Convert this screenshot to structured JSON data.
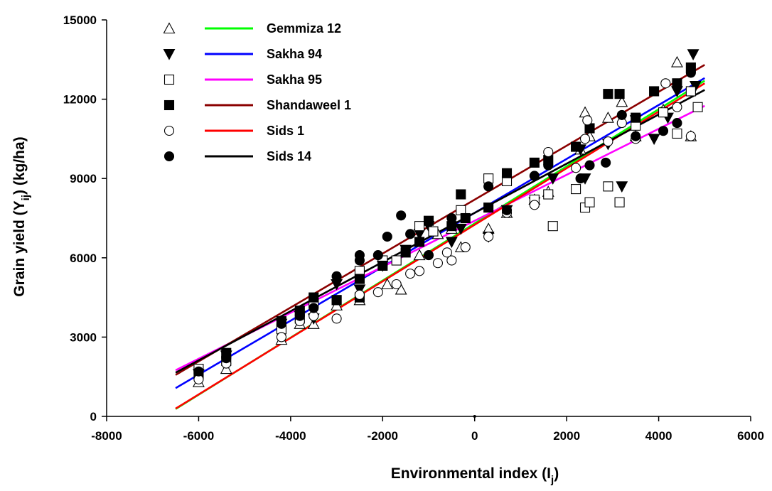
{
  "chart_data": {
    "type": "scatter",
    "xlabel": {
      "main": "Environmental index (I",
      "sub": "j",
      "close": ")"
    },
    "ylabel": {
      "main": "Grain yield (Y",
      "sub": "ij",
      "close": ") (kg/ha)"
    },
    "xlim": [
      -8000,
      6000
    ],
    "ylim": [
      0,
      15000
    ],
    "xticks": [
      -8000,
      -6000,
      -4000,
      -2000,
      0,
      2000,
      4000,
      6000
    ],
    "yticks": [
      0,
      3000,
      6000,
      9000,
      12000,
      15000
    ],
    "xtick_labels": [
      "-8000",
      "-6000",
      "-4000",
      "-2000",
      "0",
      "2000",
      "4000",
      "6000"
    ],
    "ytick_labels": [
      "0",
      "3000",
      "6000",
      "9000",
      "12000",
      "15000"
    ],
    "grid": false,
    "legend_position": "top-left",
    "series": [
      {
        "name": "Gemmiza 12",
        "marker": "triangle-up-open",
        "line_color": "#00ff00",
        "fit": {
          "slope": 1.08,
          "intercept": 7300,
          "x_range": [
            -6500,
            5000
          ]
        },
        "points": [
          [
            -6000,
            1300
          ],
          [
            -5400,
            1800
          ],
          [
            -4200,
            2900
          ],
          [
            -3800,
            3500
          ],
          [
            -3500,
            3500
          ],
          [
            -3000,
            4200
          ],
          [
            -2500,
            4400
          ],
          [
            -1900,
            5000
          ],
          [
            -1600,
            4800
          ],
          [
            -1200,
            6100
          ],
          [
            -800,
            6900
          ],
          [
            -500,
            7100
          ],
          [
            -300,
            6400
          ],
          [
            300,
            7100
          ],
          [
            700,
            7700
          ],
          [
            1300,
            8200
          ],
          [
            1600,
            8500
          ],
          [
            2300,
            10100
          ],
          [
            2400,
            11500
          ],
          [
            2500,
            10600
          ],
          [
            2900,
            11300
          ],
          [
            3200,
            11900
          ],
          [
            3500,
            10600
          ],
          [
            4100,
            11600
          ],
          [
            4400,
            13400
          ],
          [
            4700,
            10600
          ]
        ]
      },
      {
        "name": "Sakha 94",
        "marker": "triangle-down-filled",
        "line_color": "#0000ff",
        "fit": {
          "slope": 1.02,
          "intercept": 7700,
          "x_range": [
            -6500,
            5000
          ]
        },
        "points": [
          [
            -6000,
            1600
          ],
          [
            -5400,
            2300
          ],
          [
            -4200,
            3500
          ],
          [
            -3800,
            3800
          ],
          [
            -3500,
            3700
          ],
          [
            -3000,
            5000
          ],
          [
            -2500,
            4800
          ],
          [
            -2000,
            5700
          ],
          [
            -1500,
            6300
          ],
          [
            -1200,
            6900
          ],
          [
            -1000,
            7200
          ],
          [
            -500,
            6600
          ],
          [
            -300,
            7100
          ],
          [
            300,
            6800
          ],
          [
            700,
            7800
          ],
          [
            1300,
            8100
          ],
          [
            1700,
            9000
          ],
          [
            2300,
            10100
          ],
          [
            2400,
            9000
          ],
          [
            2900,
            10300
          ],
          [
            3200,
            8700
          ],
          [
            3500,
            11200
          ],
          [
            3900,
            10500
          ],
          [
            4200,
            11300
          ],
          [
            4400,
            12300
          ],
          [
            4750,
            13700
          ],
          [
            4800,
            12500
          ]
        ]
      },
      {
        "name": "Sakha 95",
        "marker": "square-open",
        "line_color": "#ff00ff",
        "fit": {
          "slope": 0.87,
          "intercept": 7400,
          "x_range": [
            -6500,
            5000
          ]
        },
        "points": [
          [
            -6000,
            1800
          ],
          [
            -5400,
            2100
          ],
          [
            -4200,
            3300
          ],
          [
            -3800,
            3700
          ],
          [
            -3500,
            4300
          ],
          [
            -3000,
            4400
          ],
          [
            -2500,
            5500
          ],
          [
            -2000,
            5900
          ],
          [
            -1700,
            5900
          ],
          [
            -1200,
            7200
          ],
          [
            -900,
            7000
          ],
          [
            -300,
            7800
          ],
          [
            300,
            9000
          ],
          [
            700,
            8900
          ],
          [
            1300,
            8200
          ],
          [
            1600,
            8400
          ],
          [
            1700,
            7200
          ],
          [
            2200,
            8600
          ],
          [
            2400,
            7900
          ],
          [
            2500,
            8100
          ],
          [
            2900,
            8700
          ],
          [
            3150,
            8100
          ],
          [
            3500,
            11000
          ],
          [
            4100,
            11500
          ],
          [
            4400,
            10700
          ],
          [
            4700,
            12300
          ],
          [
            4850,
            11700
          ]
        ]
      },
      {
        "name": "Shandaweel 1",
        "marker": "square-filled",
        "line_color": "#8b0000",
        "fit": {
          "slope": 1.02,
          "intercept": 8200,
          "x_range": [
            -6500,
            5000
          ]
        },
        "points": [
          [
            -6000,
            1600
          ],
          [
            -5400,
            2400
          ],
          [
            -4200,
            3600
          ],
          [
            -3800,
            4000
          ],
          [
            -3500,
            4500
          ],
          [
            -3000,
            4400
          ],
          [
            -2500,
            4500
          ],
          [
            -2500,
            5200
          ],
          [
            -2000,
            5700
          ],
          [
            -1500,
            6200
          ],
          [
            -1200,
            6600
          ],
          [
            -1000,
            7400
          ],
          [
            -500,
            7200
          ],
          [
            -300,
            8400
          ],
          [
            -200,
            7500
          ],
          [
            300,
            7900
          ],
          [
            700,
            9200
          ],
          [
            1300,
            9600
          ],
          [
            1600,
            9700
          ],
          [
            2200,
            10200
          ],
          [
            2500,
            10900
          ],
          [
            2900,
            12200
          ],
          [
            3150,
            12200
          ],
          [
            3500,
            11300
          ],
          [
            3900,
            12300
          ],
          [
            4400,
            12600
          ],
          [
            4700,
            13200
          ]
        ]
      },
      {
        "name": "Sids 1",
        "marker": "circle-open",
        "line_color": "#ff0000",
        "fit": {
          "slope": 1.07,
          "intercept": 7250,
          "x_range": [
            -6500,
            5000
          ]
        },
        "points": [
          [
            -6000,
            1400
          ],
          [
            -5400,
            2000
          ],
          [
            -4200,
            3000
          ],
          [
            -3800,
            3600
          ],
          [
            -3500,
            3800
          ],
          [
            -3000,
            3700
          ],
          [
            -2500,
            4600
          ],
          [
            -2100,
            4700
          ],
          [
            -1700,
            5000
          ],
          [
            -1400,
            5400
          ],
          [
            -1200,
            5500
          ],
          [
            -800,
            5800
          ],
          [
            -600,
            6200
          ],
          [
            -500,
            5900
          ],
          [
            -200,
            6400
          ],
          [
            300,
            6800
          ],
          [
            700,
            7700
          ],
          [
            1300,
            8000
          ],
          [
            1600,
            10000
          ],
          [
            2200,
            9400
          ],
          [
            2400,
            10500
          ],
          [
            2450,
            11200
          ],
          [
            2900,
            10400
          ],
          [
            3200,
            11100
          ],
          [
            3500,
            10500
          ],
          [
            4150,
            12600
          ],
          [
            4400,
            11700
          ],
          [
            4700,
            10600
          ]
        ]
      },
      {
        "name": "Sids 14",
        "marker": "circle-filled",
        "line_color": "#000000",
        "fit": {
          "slope": 0.93,
          "intercept": 7700,
          "x_range": [
            -6500,
            5000
          ]
        },
        "points": [
          [
            -6000,
            1700
          ],
          [
            -5400,
            2200
          ],
          [
            -4200,
            3500
          ],
          [
            -3800,
            3800
          ],
          [
            -3500,
            4100
          ],
          [
            -3000,
            5300
          ],
          [
            -2500,
            5900
          ],
          [
            -2500,
            6100
          ],
          [
            -2100,
            6100
          ],
          [
            -1900,
            6800
          ],
          [
            -1600,
            7600
          ],
          [
            -1400,
            6900
          ],
          [
            -1000,
            6100
          ],
          [
            -500,
            7500
          ],
          [
            300,
            8700
          ],
          [
            700,
            7800
          ],
          [
            1300,
            9100
          ],
          [
            1600,
            9500
          ],
          [
            2300,
            9000
          ],
          [
            2500,
            9500
          ],
          [
            2850,
            9600
          ],
          [
            3200,
            11400
          ],
          [
            3500,
            10600
          ],
          [
            4100,
            10800
          ],
          [
            4400,
            11100
          ],
          [
            4700,
            13000
          ]
        ]
      }
    ]
  }
}
